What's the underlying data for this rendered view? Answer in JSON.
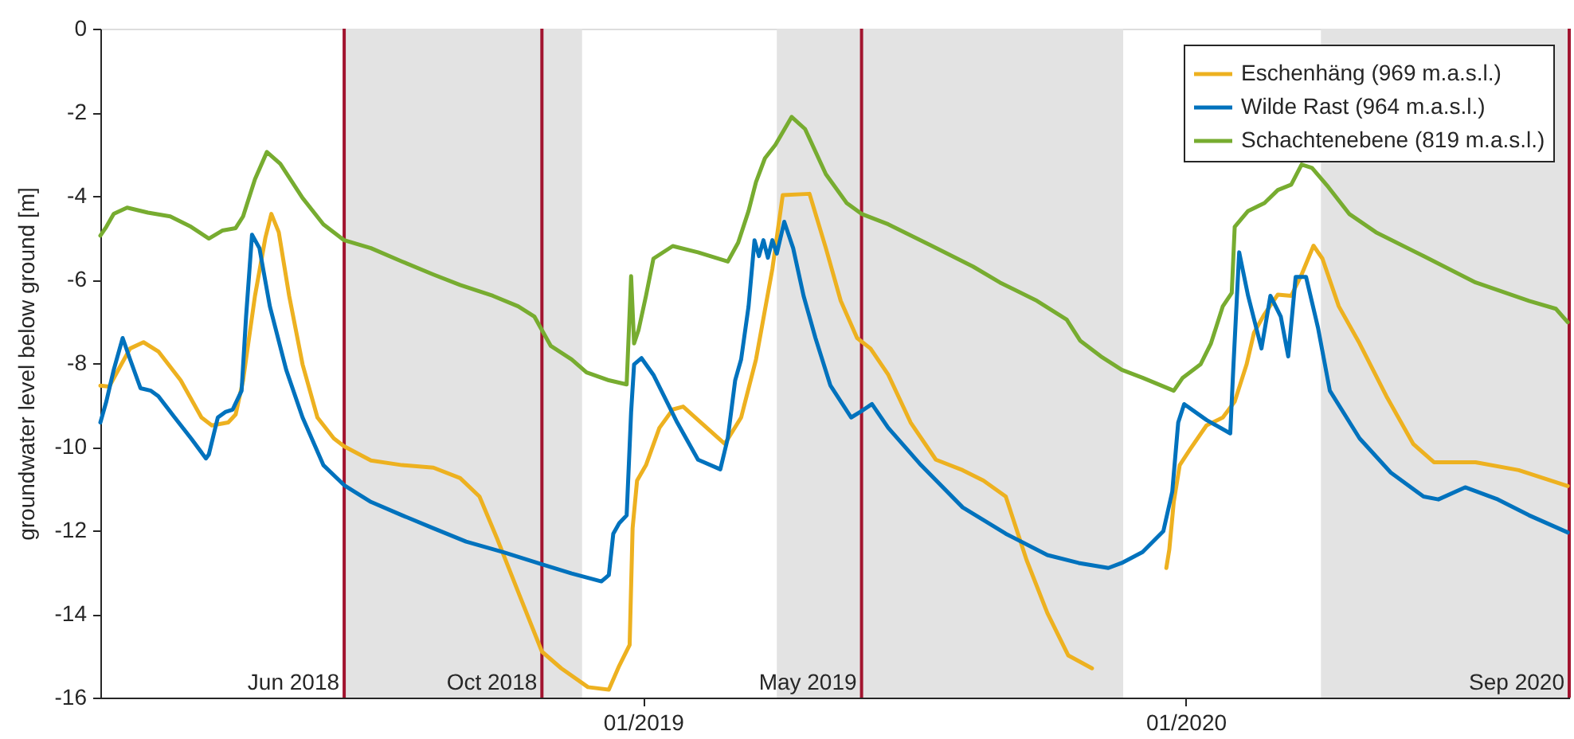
{
  "chart_data": {
    "type": "line",
    "ylabel": "groundwater level below ground [m]",
    "xlim": [
      "2018-01-01",
      "2020-09-15"
    ],
    "xticks": [
      {
        "value": "2019-01-01",
        "label": "01/2019"
      },
      {
        "value": "2020-01-01",
        "label": "01/2020"
      }
    ],
    "ylim": [
      -16,
      0
    ],
    "yticks": [
      -16,
      -14,
      -12,
      -10,
      -8,
      -6,
      -4,
      -2,
      0
    ],
    "legend": "top right",
    "bands": [
      {
        "axis": "x",
        "from": "2018-06-14",
        "to": "2018-11-21",
        "color": "#e3e3e3"
      },
      {
        "axis": "x",
        "from": "2019-04-01",
        "to": "2019-11-20",
        "color": "#e3e3e3"
      },
      {
        "axis": "x",
        "from": "2020-04-01",
        "to": "2020-09-15",
        "color": "#e3e3e3"
      }
    ],
    "ref_lines": [
      {
        "axis": "x",
        "value": "2018-06-14",
        "label": "Jun 2018",
        "color": "#a2142f"
      },
      {
        "axis": "x",
        "value": "2018-10-25",
        "label": "Oct 2018",
        "color": "#a2142f"
      },
      {
        "axis": "x",
        "value": "2019-05-28",
        "label": "May 2019",
        "color": "#a2142f"
      },
      {
        "axis": "x",
        "value": "2020-09-15",
        "label": "Sep 2020",
        "color": "#a2142f"
      }
    ],
    "series": [
      {
        "name": "Eschenhäng (969 m.a.s.l.)",
        "color": "#edb120",
        "x": [
          "2018-01-01",
          "2018-01-07",
          "2018-01-14",
          "2018-01-21",
          "2018-01-30",
          "2018-02-09",
          "2018-02-24",
          "2018-03-10",
          "2018-03-17",
          "2018-03-28",
          "2018-04-02",
          "2018-04-07",
          "2018-04-15",
          "2018-04-22",
          "2018-04-26",
          "2018-05-01",
          "2018-05-08",
          "2018-05-17",
          "2018-05-27",
          "2018-06-07",
          "2018-06-14",
          "2018-07-02",
          "2018-07-23",
          "2018-08-13",
          "2018-08-31",
          "2018-09-13",
          "2018-09-25",
          "2018-10-09",
          "2018-10-25",
          "2018-11-07",
          "2018-11-25",
          "2018-12-09",
          "2018-12-16",
          "2018-12-23",
          "2018-12-25",
          "2018-12-28",
          "2019-01-03",
          "2019-01-12",
          "2019-01-21",
          "2019-01-28",
          "2019-02-07",
          "2019-02-25",
          "2019-03-08",
          "2019-03-18",
          "2019-03-29",
          "2019-04-05",
          "2019-04-23",
          "2019-05-04",
          "2019-05-14",
          "2019-05-25",
          "2019-06-03",
          "2019-06-15",
          "2019-06-30",
          "2019-07-17",
          "2019-08-04",
          "2019-08-18",
          "2019-09-02",
          "2019-09-16",
          "2019-09-30",
          "2019-10-14",
          "2019-10-30",
          "2019-11-25",
          "2019-12-19",
          "2019-12-21",
          "2019-12-24",
          "2019-12-28",
          "2020-01-04",
          "2020-01-15",
          "2020-01-26",
          "2020-02-03",
          "2020-02-11",
          "2020-02-16",
          "2020-02-23",
          "2020-03-03",
          "2020-03-12",
          "2020-03-19",
          "2020-03-27",
          "2020-04-02",
          "2020-04-13",
          "2020-04-27",
          "2020-05-15",
          "2020-06-02",
          "2020-06-16",
          "2020-07-14",
          "2020-08-12",
          "2020-09-14"
        ],
        "values": [
          -8.54,
          -8.56,
          -8.1,
          -7.65,
          -7.5,
          -7.72,
          -8.41,
          -9.3,
          -9.49,
          -9.42,
          -9.23,
          -8.41,
          -6.39,
          -5.0,
          -4.43,
          -4.87,
          -6.39,
          -8.03,
          -9.3,
          -9.8,
          -9.99,
          -10.33,
          -10.44,
          -10.5,
          -10.75,
          -11.19,
          -12.21,
          -13.47,
          -14.9,
          -15.3,
          -15.75,
          -15.81,
          -15.24,
          -14.74,
          -11.95,
          -10.81,
          -10.44,
          -9.55,
          -9.11,
          -9.04,
          -9.36,
          -9.93,
          -9.3,
          -7.91,
          -5.75,
          -3.98,
          -3.95,
          -5.25,
          -6.51,
          -7.4,
          -7.65,
          -8.28,
          -9.42,
          -10.31,
          -10.56,
          -10.81,
          -11.19,
          -12.71,
          -13.98,
          -14.99,
          -15.3,
          null,
          -12.9,
          -12.46,
          -11.32,
          -10.44,
          -10.06,
          -9.49,
          -9.3,
          -8.92,
          -8.03,
          -7.27,
          -6.83,
          -6.36,
          -6.39,
          -5.88,
          -5.19,
          -5.5,
          -6.64,
          -7.53,
          -8.79,
          -9.93,
          -10.37,
          -10.37,
          -10.56,
          -10.94
        ]
      },
      {
        "name": "Wilde Rast (964 m.a.s.l.)",
        "color": "#0072bd",
        "x": [
          "2018-01-01",
          "2018-01-05",
          "2018-01-10",
          "2018-01-16",
          "2018-01-21",
          "2018-01-28",
          "2018-02-04",
          "2018-02-09",
          "2018-02-20",
          "2018-03-03",
          "2018-03-13",
          "2018-03-15",
          "2018-03-21",
          "2018-03-26",
          "2018-03-31",
          "2018-04-06",
          "2018-04-09",
          "2018-04-13",
          "2018-04-18",
          "2018-04-25",
          "2018-05-06",
          "2018-05-17",
          "2018-05-31",
          "2018-06-14",
          "2018-07-02",
          "2018-07-23",
          "2018-08-13",
          "2018-09-04",
          "2018-09-29",
          "2018-10-25",
          "2018-11-14",
          "2018-12-04",
          "2018-12-09",
          "2018-12-12",
          "2018-12-16",
          "2018-12-21",
          "2018-12-24",
          "2018-12-26",
          "2018-12-31",
          "2019-01-08",
          "2019-01-24",
          "2019-02-07",
          "2019-02-22",
          "2019-02-27",
          "2019-03-04",
          "2019-03-08",
          "2019-03-13",
          "2019-03-17",
          "2019-03-20",
          "2019-03-23",
          "2019-03-26",
          "2019-03-29",
          "2019-04-01",
          "2019-04-06",
          "2019-04-12",
          "2019-04-19",
          "2019-04-27",
          "2019-05-07",
          "2019-05-21",
          "2019-05-27",
          "2019-06-04",
          "2019-06-15",
          "2019-07-07",
          "2019-08-04",
          "2019-09-02",
          "2019-09-30",
          "2019-10-21",
          "2019-11-10",
          "2019-11-19",
          "2019-12-03",
          "2019-12-17",
          "2019-12-23",
          "2019-12-27",
          "2019-12-31",
          "2020-01-15",
          "2020-01-31",
          "2020-02-02",
          "2020-02-06",
          "2020-02-12",
          "2020-02-21",
          "2020-02-27",
          "2020-03-05",
          "2020-03-10",
          "2020-03-15",
          "2020-03-22",
          "2020-03-30",
          "2020-04-07",
          "2020-04-27",
          "2020-05-18",
          "2020-06-09",
          "2020-06-19",
          "2020-07-07",
          "2020-07-29",
          "2020-08-19",
          "2020-09-14"
        ],
        "values": [
          -9.42,
          -8.92,
          -8.16,
          -7.4,
          -7.91,
          -8.6,
          -8.66,
          -8.79,
          -9.3,
          -9.8,
          -10.28,
          -10.18,
          -9.3,
          -9.17,
          -9.11,
          -8.66,
          -6.89,
          -4.93,
          -5.25,
          -6.64,
          -8.16,
          -9.3,
          -10.44,
          -10.92,
          -11.32,
          -11.64,
          -11.95,
          -12.27,
          -12.52,
          -12.81,
          -13.03,
          -13.22,
          -13.07,
          -12.08,
          -11.83,
          -11.64,
          -9.17,
          -8.03,
          -7.88,
          -8.28,
          -9.42,
          -10.31,
          -10.54,
          -9.8,
          -8.41,
          -7.91,
          -6.64,
          -5.06,
          -5.44,
          -5.06,
          -5.48,
          -5.06,
          -5.38,
          -4.62,
          -5.25,
          -6.39,
          -7.4,
          -8.53,
          -9.3,
          -9.17,
          -8.98,
          -9.55,
          -10.44,
          -11.45,
          -12.08,
          -12.59,
          -12.78,
          -12.9,
          -12.78,
          -12.52,
          -12.02,
          -11.07,
          -9.42,
          -8.98,
          -9.36,
          -9.68,
          -8.16,
          -5.35,
          -6.39,
          -7.65,
          -6.39,
          -6.89,
          -7.84,
          -5.94,
          -5.94,
          -7.15,
          -8.66,
          -9.8,
          -10.62,
          -11.19,
          -11.26,
          -10.97,
          -11.26,
          -11.64,
          -12.05
        ]
      },
      {
        "name": "Schachtenebene (819 m.a.s.l.)",
        "color": "#77ac30",
        "x": [
          "2018-01-01",
          "2018-01-05",
          "2018-01-10",
          "2018-01-19",
          "2018-02-02",
          "2018-02-17",
          "2018-03-03",
          "2018-03-15",
          "2018-03-24",
          "2018-04-02",
          "2018-04-07",
          "2018-04-15",
          "2018-04-23",
          "2018-05-02",
          "2018-05-17",
          "2018-05-31",
          "2018-06-14",
          "2018-07-02",
          "2018-07-23",
          "2018-08-13",
          "2018-08-31",
          "2018-09-22",
          "2018-10-09",
          "2018-10-20",
          "2018-10-25",
          "2018-10-31",
          "2018-11-14",
          "2018-11-24",
          "2018-12-09",
          "2018-12-21",
          "2018-12-24",
          "2018-12-26",
          "2018-12-29",
          "2019-01-03",
          "2019-01-08",
          "2019-01-21",
          "2019-02-07",
          "2019-02-27",
          "2019-03-06",
          "2019-03-13",
          "2019-03-18",
          "2019-03-24",
          "2019-03-31",
          "2019-04-11",
          "2019-04-20",
          "2019-05-04",
          "2019-05-18",
          "2019-05-28",
          "2019-06-15",
          "2019-07-14",
          "2019-08-11",
          "2019-08-29",
          "2019-09-23",
          "2019-10-13",
          "2019-10-22",
          "2019-11-05",
          "2019-11-19",
          "2019-12-03",
          "2019-12-24",
          "2019-12-30",
          "2020-01-11",
          "2020-01-18",
          "2020-01-26",
          "2020-02-01",
          "2020-02-03",
          "2020-02-12",
          "2020-02-23",
          "2020-03-03",
          "2020-03-12",
          "2020-03-19",
          "2020-03-26",
          "2020-04-06",
          "2020-04-20",
          "2020-05-08",
          "2020-06-09",
          "2020-07-14",
          "2020-08-19",
          "2020-09-06",
          "2020-09-14"
        ],
        "values": [
          -4.95,
          -4.74,
          -4.43,
          -4.28,
          -4.4,
          -4.49,
          -4.74,
          -5.02,
          -4.83,
          -4.77,
          -4.49,
          -3.6,
          -2.95,
          -3.23,
          -4.05,
          -4.68,
          -5.06,
          -5.25,
          -5.57,
          -5.88,
          -6.13,
          -6.39,
          -6.64,
          -6.89,
          -7.21,
          -7.59,
          -7.91,
          -8.22,
          -8.41,
          -8.51,
          -5.92,
          -7.53,
          -7.21,
          -6.39,
          -5.5,
          -5.2,
          -5.35,
          -5.57,
          -5.12,
          -4.36,
          -3.67,
          -3.1,
          -2.78,
          -2.11,
          -2.4,
          -3.48,
          -4.17,
          -4.43,
          -4.68,
          -5.19,
          -5.69,
          -6.07,
          -6.51,
          -6.96,
          -7.46,
          -7.84,
          -8.16,
          -8.35,
          -8.66,
          -8.35,
          -8.03,
          -7.53,
          -6.64,
          -6.32,
          -4.74,
          -4.36,
          -4.17,
          -3.86,
          -3.73,
          -3.25,
          -3.33,
          -3.79,
          -4.43,
          -4.87,
          -5.44,
          -6.07,
          -6.51,
          -6.7,
          -7.02
        ]
      }
    ]
  }
}
